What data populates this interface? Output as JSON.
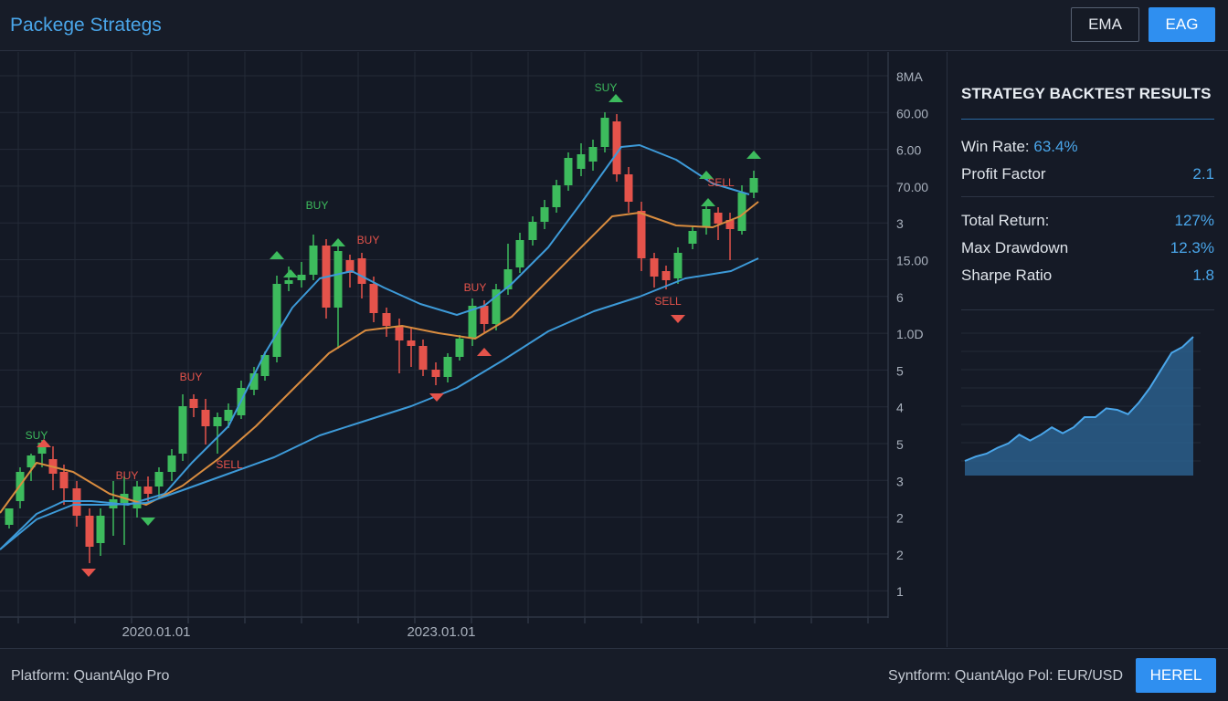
{
  "header": {
    "title": "Packege Strategs",
    "buttons": {
      "ema": "EMA",
      "eag": "EAG"
    }
  },
  "chart": {
    "y_axis_labels": [
      "8MA",
      "60.00",
      "6.00",
      "70.00",
      "3",
      "15.00",
      "6",
      "1.0D",
      "5",
      "4",
      "5",
      "3",
      "2",
      "2",
      "1"
    ],
    "x_axis_labels": [
      "2020.01.01",
      "2023.01.01"
    ],
    "signals": [
      "SUY",
      "BUY",
      "BUY",
      "SELL",
      "BUY",
      "BUY",
      "BUY",
      "SUY",
      "SELL",
      "SELL"
    ],
    "colors": {
      "up": "#3dbb5d",
      "down": "#e5534b",
      "ema_fast": "#3d9ad8",
      "ema_mid": "#d98c3f",
      "ema_slow": "#3d9ad8",
      "grid": "#242b38"
    }
  },
  "chart_data": {
    "type": "candlestick",
    "x_labels": [
      "2020.01.01",
      "2023.01.01"
    ],
    "y_ticks": [
      "8MA",
      "60.00",
      "6.00",
      "70.00",
      "3",
      "15.00",
      "6",
      "1.0D",
      "5",
      "4",
      "5",
      "3",
      "2",
      "2",
      "1"
    ],
    "series": [
      {
        "name": "",
        "values": []
      }
    ],
    "annotations": [
      "SUY",
      "BUY",
      "BUY",
      "SELL",
      "BUY",
      "BUY",
      "BUY",
      "SUY",
      "SELL",
      "SELL"
    ]
  },
  "panel": {
    "title": "STRATEGY BACKTEST RESULTS",
    "stats": [
      {
        "label": "Win Rate:",
        "value": "63.4%"
      },
      {
        "label": "Profit Factor",
        "value": "2.1"
      },
      {
        "label": "Total Return:",
        "value": "127%"
      },
      {
        "label": "Max Drawdown",
        "value": "12.3%"
      },
      {
        "label": "Sharpe Ratio",
        "value": "1.8"
      }
    ],
    "equity_curve": [
      0.1,
      0.13,
      0.15,
      0.19,
      0.22,
      0.28,
      0.24,
      0.28,
      0.33,
      0.29,
      0.33,
      0.4,
      0.4,
      0.46,
      0.45,
      0.42,
      0.5,
      0.6,
      0.72,
      0.84,
      0.88,
      0.95
    ]
  },
  "footer": {
    "left": "Platform: QuantAlgo Pro",
    "right": "Syntform: QuantAlgo Pol: EUR/USD",
    "button": "HEREL"
  }
}
